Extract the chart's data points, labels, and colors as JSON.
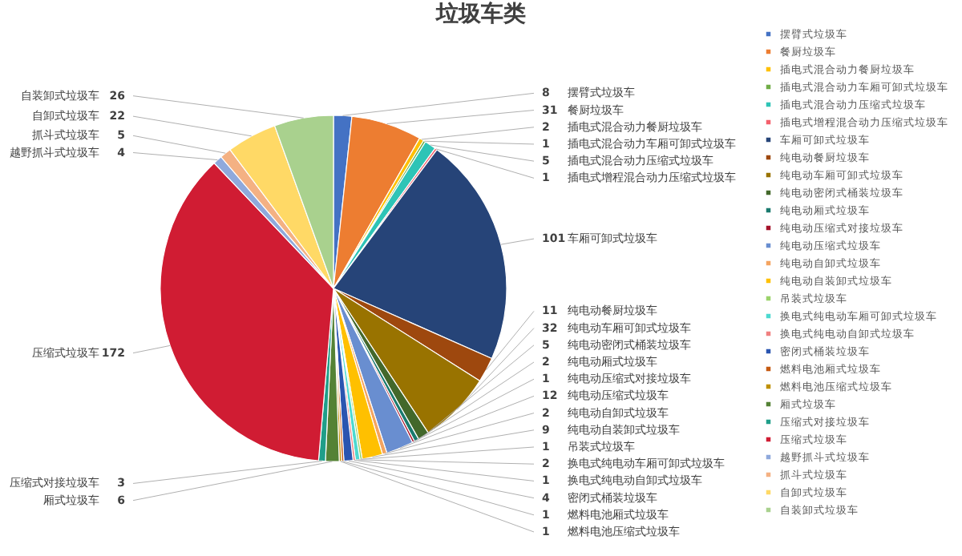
{
  "chart_data": {
    "type": "pie",
    "title": "垃圾车类",
    "categories": [
      "摆臂式垃圾车",
      "餐厨垃圾车",
      "插电式混合动力餐厨垃圾车",
      "插电式混合动力车厢可卸式垃圾车",
      "插电式混合动力压缩式垃圾车",
      "插电式增程混合动力压缩式垃圾车",
      "车厢可卸式垃圾车",
      "纯电动餐厨垃圾车",
      "纯电动车厢可卸式垃圾车",
      "纯电动密闭式桶装垃圾车",
      "纯电动厢式垃圾车",
      "纯电动压缩式对接垃圾车",
      "纯电动压缩式垃圾车",
      "纯电动自卸式垃圾车",
      "纯电动自装卸式垃圾车",
      "吊装式垃圾车",
      "换电式纯电动车厢可卸式垃圾车",
      "换电式纯电动自卸式垃圾车",
      "密闭式桶装垃圾车",
      "燃料电池厢式垃圾车",
      "燃料电池压缩式垃圾车",
      "厢式垃圾车",
      "压缩式对接垃圾车",
      "压缩式垃圾车",
      "越野抓斗式垃圾车",
      "抓斗式垃圾车",
      "自卸式垃圾车",
      "自装卸式垃圾车"
    ],
    "values": [
      8,
      31,
      2,
      1,
      5,
      1,
      101,
      11,
      32,
      5,
      2,
      1,
      12,
      2,
      9,
      1,
      2,
      1,
      4,
      1,
      1,
      6,
      3,
      172,
      4,
      5,
      22,
      26
    ],
    "colors": [
      "#4472c4",
      "#ed7d31",
      "#ffc000",
      "#70ad47",
      "#2ec4b6",
      "#f4606c",
      "#264478",
      "#9e480e",
      "#997300",
      "#43682b",
      "#1a7a6e",
      "#a5122a",
      "#698ed0",
      "#f4a460",
      "#ffc000",
      "#9bd36b",
      "#4dd9d0",
      "#f08080",
      "#2a55b0",
      "#c55a11",
      "#bf9000",
      "#548235",
      "#1f9e89",
      "#d01c33",
      "#8fa9dc",
      "#f4b183",
      "#ffd966",
      "#a9d18e"
    ],
    "data_labels": true,
    "legend": "right"
  }
}
